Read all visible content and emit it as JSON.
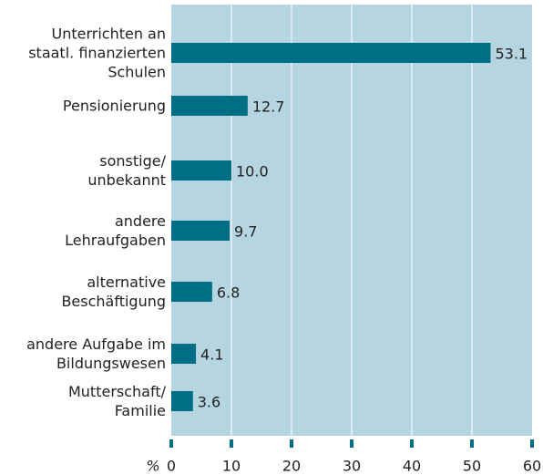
{
  "chart_data": {
    "type": "bar",
    "orientation": "horizontal",
    "categories": [
      "Unterrichten an\nstaatl. finanzierten\nSchulen",
      "Pensionierung",
      "sonstige/\nunbekannt",
      "andere\nLehraufgaben",
      "alternative\nBeschäftigung",
      "andere Aufgabe im\nBildungswesen",
      "Mutterschaft/\nFamilie"
    ],
    "values": [
      53.1,
      12.7,
      10.0,
      9.7,
      6.8,
      4.1,
      3.6
    ],
    "value_labels": [
      "53.1",
      "12.7",
      "10.0",
      "9.7",
      "6.8",
      "4.1",
      "3.6"
    ],
    "color": "#006e85",
    "background": "#b5d5e0",
    "xlabel": "%",
    "xlim": [
      0,
      60
    ],
    "xticks": [
      0,
      10,
      20,
      30,
      40,
      50,
      60
    ],
    "grid": true
  }
}
